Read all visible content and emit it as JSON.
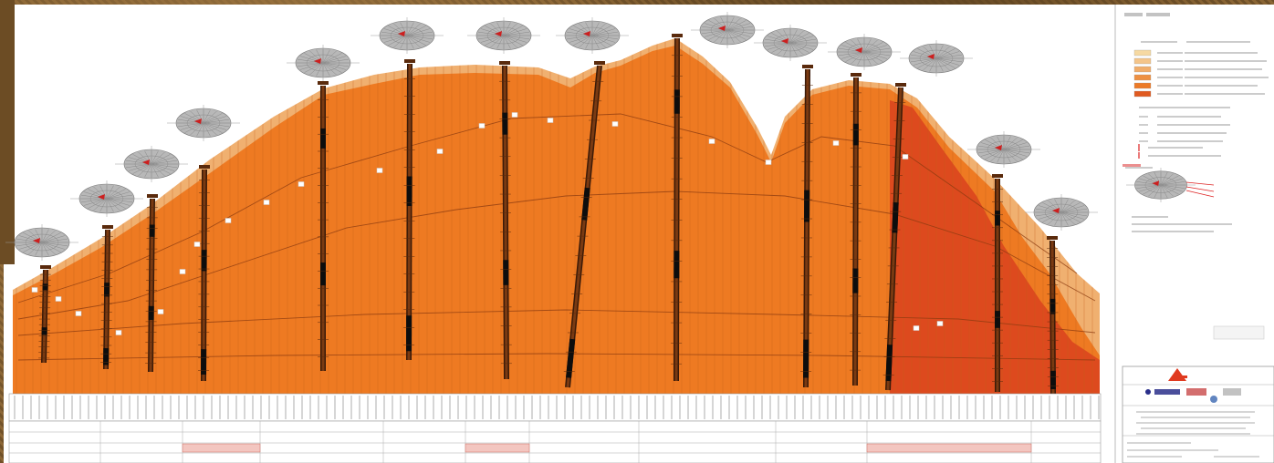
{
  "legend": {
    "title": "Legenda",
    "sections": [
      {
        "heading": "",
        "items": []
      }
    ]
  },
  "colors": {
    "paper": "#ffffff",
    "layer_light": "#f0b070",
    "layer_main": "#ee7a22",
    "layer_dark": "#dd4a1e",
    "borehole": "#151515",
    "line": "#8a3a10",
    "title_block_red": "#e03a1f"
  },
  "icons": [
    "borehole-rose-icon",
    "company-logo-icon"
  ]
}
